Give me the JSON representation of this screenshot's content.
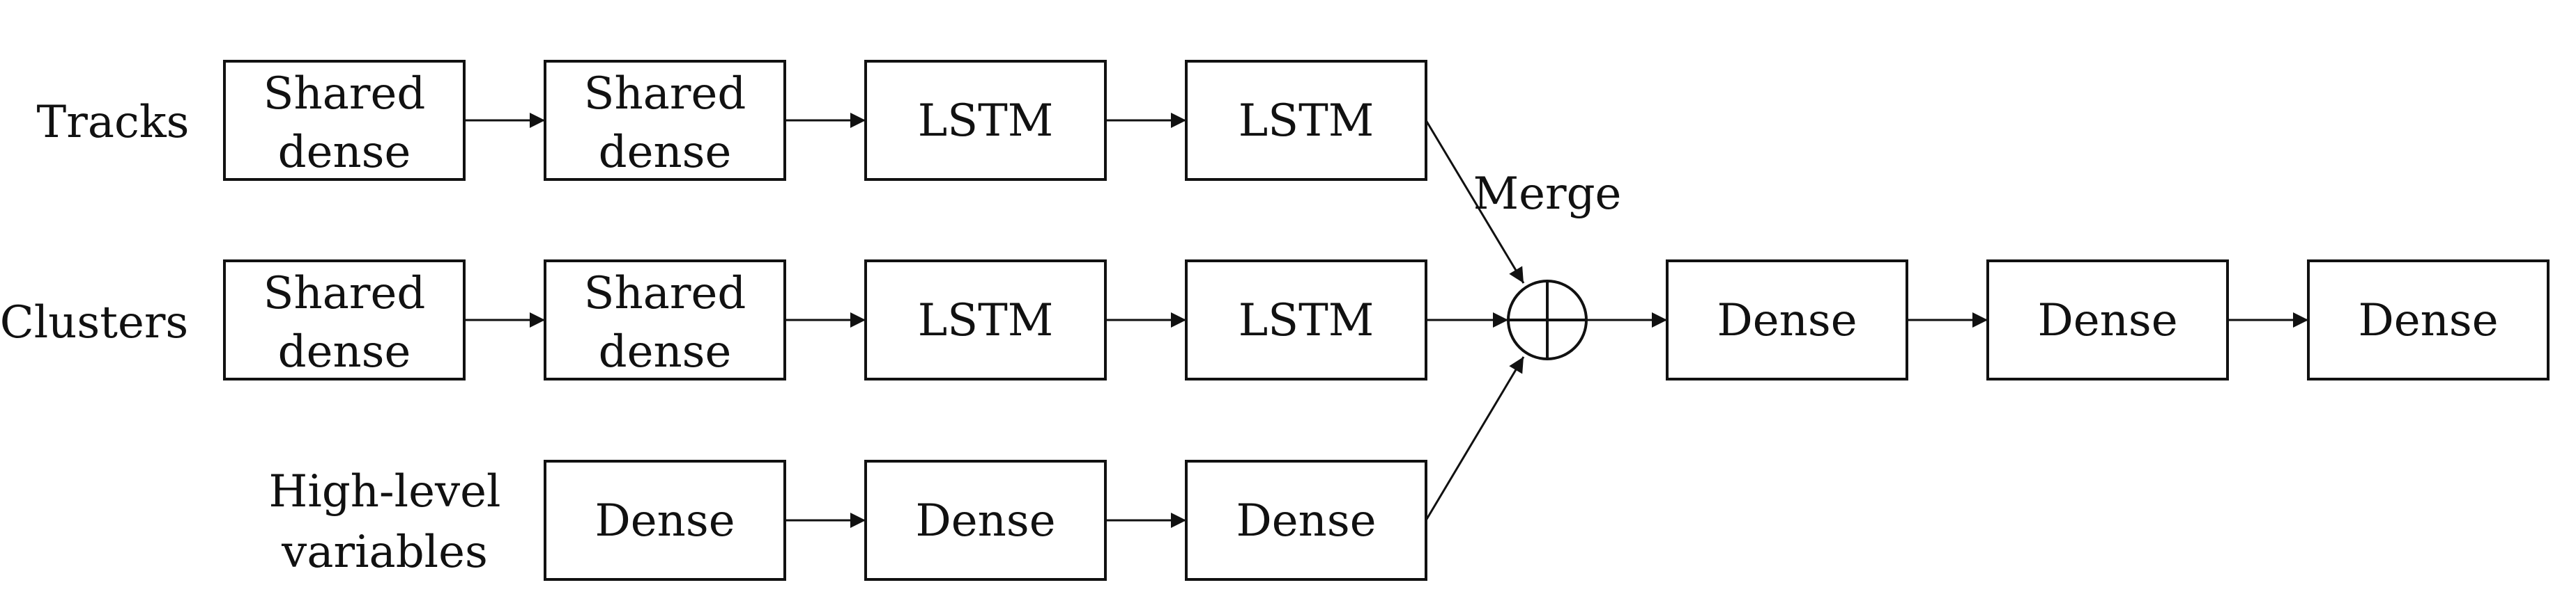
{
  "inputs": {
    "tracks": "Tracks",
    "clusters": "Clusters",
    "high_level_line1": "High-level",
    "high_level_line2": "variables"
  },
  "tracks_branch": [
    {
      "line1": "Shared",
      "line2": "dense"
    },
    {
      "line1": "Shared",
      "line2": "dense"
    },
    {
      "label": "LSTM"
    },
    {
      "label": "LSTM"
    }
  ],
  "clusters_branch": [
    {
      "line1": "Shared",
      "line2": "dense"
    },
    {
      "line1": "Shared",
      "line2": "dense"
    },
    {
      "label": "LSTM"
    },
    {
      "label": "LSTM"
    }
  ],
  "high_level_branch": [
    {
      "label": "Dense"
    },
    {
      "label": "Dense"
    },
    {
      "label": "Dense"
    }
  ],
  "merge": {
    "label": "Merge"
  },
  "head": [
    {
      "label": "Dense"
    },
    {
      "label": "Dense"
    },
    {
      "label": "Dense"
    }
  ]
}
